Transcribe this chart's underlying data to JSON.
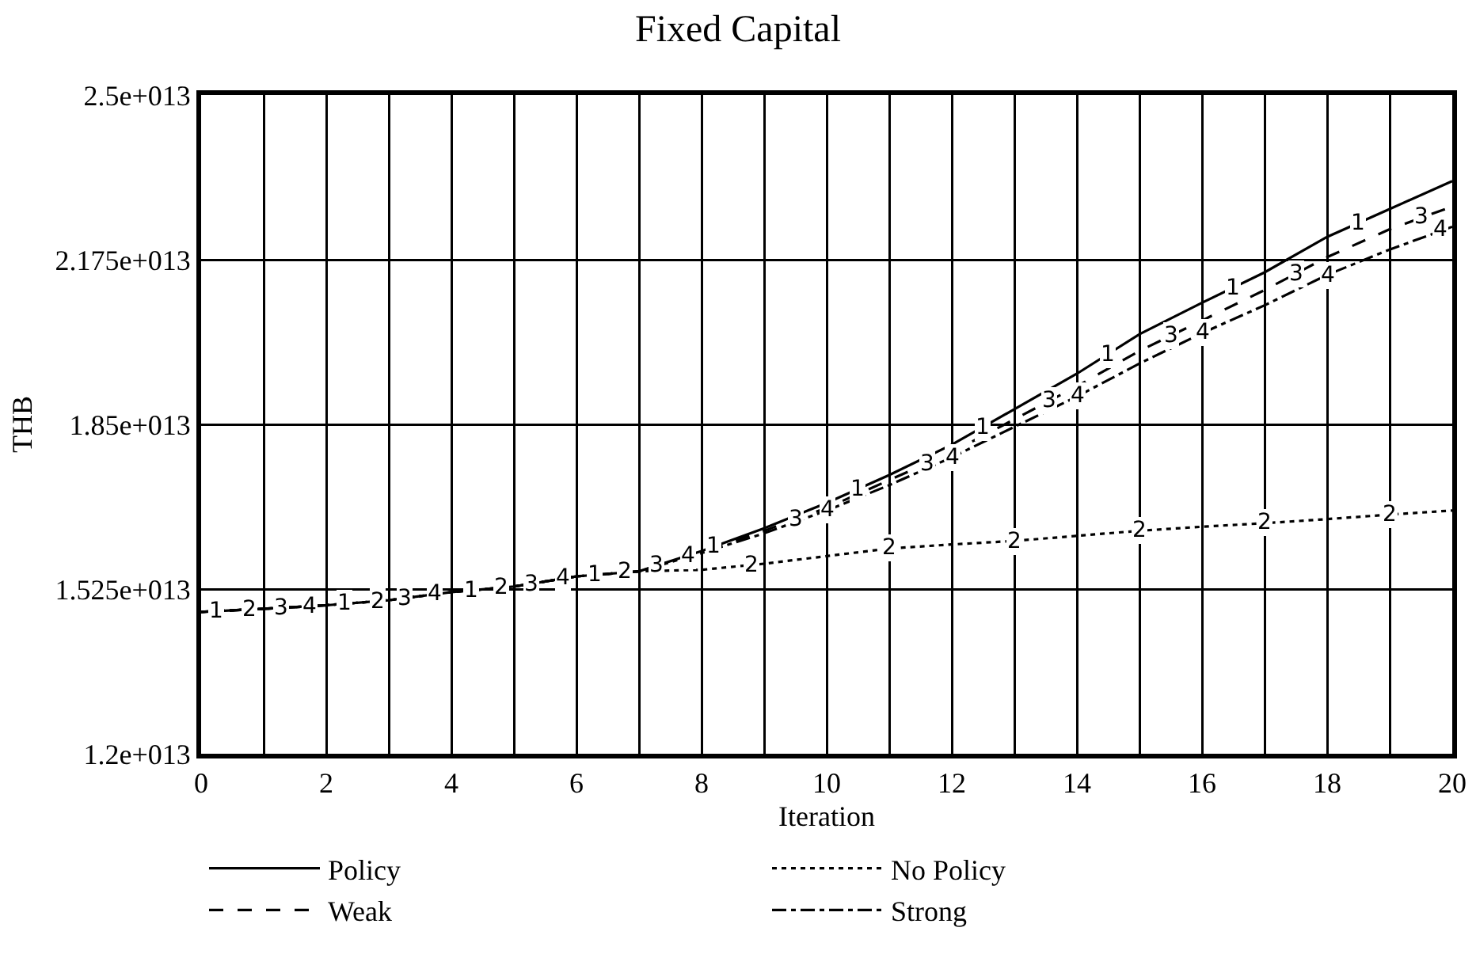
{
  "chart_data": {
    "type": "line",
    "title": "Fixed Capital",
    "xlabel": "Iteration",
    "ylabel": "THB",
    "x": [
      0,
      1,
      2,
      3,
      4,
      5,
      6,
      7,
      8,
      9,
      10,
      11,
      12,
      13,
      14,
      15,
      16,
      17,
      18,
      19,
      20
    ],
    "series": [
      {
        "name": "Policy",
        "color": "#000000",
        "line_style": "solid",
        "values": [
          14800000000000,
          14860000000000,
          14930000000000,
          15030000000000,
          15190000000000,
          15300000000000,
          15500000000000,
          15600000000000,
          16000000000000,
          16450000000000,
          16950000000000,
          17500000000000,
          18100000000000,
          18800000000000,
          19500000000000,
          20280000000000,
          20900000000000,
          21500000000000,
          22200000000000,
          22750000000000,
          23300000000000
        ]
      },
      {
        "name": "No Policy",
        "color": "#000000",
        "line_style": "dotted",
        "values": [
          14800000000000,
          14860000000000,
          14930000000000,
          15030000000000,
          15190000000000,
          15300000000000,
          15500000000000,
          15600000000000,
          15630000000000,
          15750000000000,
          15900000000000,
          16050000000000,
          16130000000000,
          16200000000000,
          16300000000000,
          16400000000000,
          16480000000000,
          16550000000000,
          16630000000000,
          16720000000000,
          16800000000000
        ]
      },
      {
        "name": "Weak",
        "color": "#000000",
        "line_style": "dashed",
        "values": [
          14800000000000,
          14860000000000,
          14930000000000,
          15030000000000,
          15190000000000,
          15300000000000,
          15500000000000,
          15600000000000,
          15980000000000,
          16400000000000,
          16850000000000,
          17400000000000,
          17950000000000,
          18600000000000,
          19250000000000,
          19950000000000,
          20550000000000,
          21150000000000,
          21800000000000,
          22350000000000,
          22800000000000
        ]
      },
      {
        "name": "Strong",
        "color": "#000000",
        "line_style": "dashdot",
        "values": [
          14800000000000,
          14860000000000,
          14930000000000,
          15030000000000,
          15190000000000,
          15300000000000,
          15500000000000,
          15600000000000,
          15960000000000,
          16350000000000,
          16800000000000,
          17300000000000,
          17850000000000,
          18450000000000,
          19050000000000,
          19700000000000,
          20300000000000,
          20850000000000,
          21450000000000,
          21950000000000,
          22400000000000
        ]
      }
    ],
    "xlim": [
      0,
      20
    ],
    "xticks": [
      0,
      {
        "value": 1,
        "label": null
      },
      2,
      {
        "value": 3,
        "label": null
      },
      4,
      {
        "value": 5,
        "label": null
      },
      6,
      {
        "value": 7,
        "label": null
      },
      8,
      {
        "value": 9,
        "label": null
      },
      10,
      {
        "value": 11,
        "label": null
      },
      12,
      {
        "value": 13,
        "label": null
      },
      14,
      {
        "value": 15,
        "label": null
      },
      16,
      {
        "value": 17,
        "label": null
      },
      18,
      {
        "value": 19,
        "label": null
      },
      20
    ],
    "ylim": [
      12000000000000,
      25000000000000
    ],
    "yticks": [
      {
        "value": 12000000000000,
        "label": "1.2e+013"
      },
      {
        "value": 15250000000000,
        "label": "1.525e+013"
      },
      {
        "value": 18500000000000,
        "label": "1.85e+013"
      },
      {
        "value": 21750000000000,
        "label": "2.175e+013"
      },
      {
        "value": 25000000000000,
        "label": "2.5e+013"
      }
    ],
    "grid": true,
    "legend": "bottom",
    "annotations": [
      {
        "text": "1",
        "x": 0.25,
        "y": 14815000000000
      },
      {
        "text": "2",
        "x": 0.78,
        "y": 14847000000000
      },
      {
        "text": "3",
        "x": 1.28,
        "y": 14880000000000
      },
      {
        "text": "4",
        "x": 1.73,
        "y": 14910000000000
      },
      {
        "text": "1",
        "x": 2.29,
        "y": 14960000000000
      },
      {
        "text": "2",
        "x": 2.82,
        "y": 15010000000000
      },
      {
        "text": "3",
        "x": 3.26,
        "y": 15070000000000
      },
      {
        "text": "4",
        "x": 3.73,
        "y": 15150000000000
      },
      {
        "text": "1",
        "x": 4.32,
        "y": 15230000000000
      },
      {
        "text": "2",
        "x": 4.8,
        "y": 15280000000000
      },
      {
        "text": "3",
        "x": 5.27,
        "y": 15350000000000
      },
      {
        "text": "4",
        "x": 5.78,
        "y": 15460000000000
      },
      {
        "text": "1",
        "x": 6.28,
        "y": 15530000000000
      },
      {
        "text": "2",
        "x": 6.78,
        "y": 15580000000000
      },
      {
        "text": "3",
        "x": 7.28,
        "y": 15710000000000
      },
      {
        "text": "4",
        "x": 7.78,
        "y": 15900000000000
      },
      {
        "text": "1",
        "x": 8.2,
        "y": 16090000000000
      },
      {
        "text": "2",
        "x": 8.8,
        "y": 15730000000000
      },
      {
        "text": "3",
        "x": 9.5,
        "y": 16620000000000
      },
      {
        "text": "4",
        "x": 10,
        "y": 16800000000000
      },
      {
        "text": "1",
        "x": 10.5,
        "y": 17220000000000
      },
      {
        "text": "2",
        "x": 11,
        "y": 16050000000000
      },
      {
        "text": "3",
        "x": 11.6,
        "y": 17730000000000
      },
      {
        "text": "4",
        "x": 12,
        "y": 17850000000000
      },
      {
        "text": "1",
        "x": 12.5,
        "y": 18450000000000
      },
      {
        "text": "2",
        "x": 13,
        "y": 16200000000000
      },
      {
        "text": "3",
        "x": 13.55,
        "y": 18960000000000
      },
      {
        "text": "4",
        "x": 14,
        "y": 19050000000000
      },
      {
        "text": "1",
        "x": 14.5,
        "y": 19890000000000
      },
      {
        "text": "2",
        "x": 15,
        "y": 16400000000000
      },
      {
        "text": "3",
        "x": 15.5,
        "y": 20250000000000
      },
      {
        "text": "4",
        "x": 16,
        "y": 20300000000000
      },
      {
        "text": "1",
        "x": 16.5,
        "y": 21200000000000
      },
      {
        "text": "2",
        "x": 17,
        "y": 16550000000000
      },
      {
        "text": "3",
        "x": 17.5,
        "y": 21480000000000
      },
      {
        "text": "4",
        "x": 18,
        "y": 21450000000000
      },
      {
        "text": "1",
        "x": 18.5,
        "y": 22480000000000
      },
      {
        "text": "2",
        "x": 19,
        "y": 16720000000000
      },
      {
        "text": "3",
        "x": 19.5,
        "y": 22580000000000
      },
      {
        "text": "4",
        "x": 19.8,
        "y": 22340000000000
      }
    ]
  }
}
